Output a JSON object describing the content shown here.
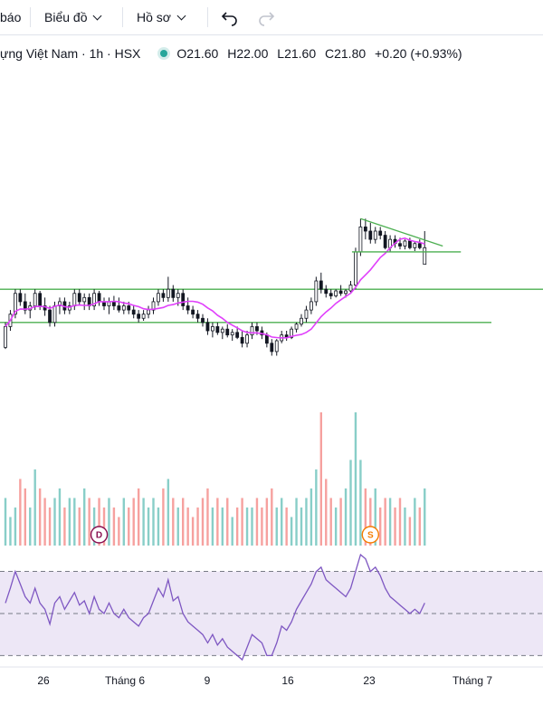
{
  "toolbar": {
    "cut_label": "báo",
    "chart_menu": "Biểu đồ",
    "profile_menu": "Hồ sơ"
  },
  "legend": {
    "symbol": "ựng Việt Nam · 1h · HSX",
    "open": "O21.60",
    "high": "H22.00",
    "low": "L21.60",
    "close": "C21.80",
    "change": "+0.20 (+0.93%)"
  },
  "colors": {
    "up": "#26a69a",
    "down": "#ef5350",
    "candle": "#131722",
    "ma": "#e040fb",
    "trendline": "#4caf50",
    "rsi": "#7e57c2",
    "rsi_band": "#ede7f6"
  },
  "events": [
    {
      "label": "D",
      "color": "#880e4f",
      "x_index": 19
    },
    {
      "label": "S",
      "color": "#f57c00",
      "x_index": 74
    }
  ],
  "chart_data": {
    "type": "candlestick",
    "x_ticks": [
      "26",
      "Tháng 6",
      "9",
      "16",
      "23",
      "Tháng 7"
    ],
    "price_range": [
      20.2,
      22.6
    ],
    "horizontal_levels": [
      21.3,
      20.9
    ],
    "rsi_levels": [
      70,
      50,
      30
    ],
    "rsi_range": [
      28,
      78
    ],
    "candles": [
      [
        20.6,
        20.9,
        20.58,
        20.85
      ],
      [
        20.85,
        21.05,
        20.8,
        21.0
      ],
      [
        21.0,
        21.3,
        20.95,
        21.25
      ],
      [
        21.25,
        21.3,
        21.1,
        21.15
      ],
      [
        21.15,
        21.25,
        21.0,
        21.05
      ],
      [
        21.05,
        21.15,
        20.95,
        21.1
      ],
      [
        21.1,
        21.3,
        21.05,
        21.25
      ],
      [
        21.25,
        21.28,
        21.05,
        21.1
      ],
      [
        21.1,
        21.2,
        20.98,
        21.05
      ],
      [
        21.05,
        21.1,
        20.85,
        20.9
      ],
      [
        20.9,
        21.15,
        20.85,
        21.1
      ],
      [
        21.1,
        21.2,
        21.0,
        21.15
      ],
      [
        21.15,
        21.2,
        21.0,
        21.05
      ],
      [
        21.05,
        21.15,
        21.0,
        21.1
      ],
      [
        21.1,
        21.3,
        21.05,
        21.25
      ],
      [
        21.25,
        21.3,
        21.1,
        21.15
      ],
      [
        21.15,
        21.25,
        21.05,
        21.2
      ],
      [
        21.2,
        21.25,
        21.05,
        21.1
      ],
      [
        21.1,
        21.3,
        21.05,
        21.25
      ],
      [
        21.25,
        21.28,
        21.1,
        21.15
      ],
      [
        21.15,
        21.2,
        21.05,
        21.1
      ],
      [
        21.1,
        21.2,
        21.0,
        21.15
      ],
      [
        21.15,
        21.22,
        21.05,
        21.1
      ],
      [
        21.1,
        21.2,
        21.02,
        21.05
      ],
      [
        21.05,
        21.15,
        21.0,
        21.1
      ],
      [
        21.1,
        21.15,
        21.0,
        21.05
      ],
      [
        21.05,
        21.1,
        20.95,
        21.0
      ],
      [
        21.0,
        21.05,
        20.9,
        20.95
      ],
      [
        20.95,
        21.05,
        20.92,
        21.0
      ],
      [
        21.0,
        21.1,
        20.95,
        21.05
      ],
      [
        21.05,
        21.2,
        21.0,
        21.15
      ],
      [
        21.15,
        21.3,
        21.1,
        21.25
      ],
      [
        21.25,
        21.3,
        21.15,
        21.2
      ],
      [
        21.2,
        21.45,
        21.15,
        21.3
      ],
      [
        21.3,
        21.35,
        21.15,
        21.2
      ],
      [
        21.2,
        21.3,
        21.1,
        21.25
      ],
      [
        21.25,
        21.3,
        21.05,
        21.1
      ],
      [
        21.1,
        21.2,
        21.0,
        21.05
      ],
      [
        21.05,
        21.1,
        20.95,
        21.0
      ],
      [
        21.0,
        21.05,
        20.9,
        20.95
      ],
      [
        20.95,
        21.0,
        20.85,
        20.9
      ],
      [
        20.9,
        20.95,
        20.75,
        20.8
      ],
      [
        20.8,
        20.9,
        20.72,
        20.85
      ],
      [
        20.85,
        20.9,
        20.75,
        20.78
      ],
      [
        20.78,
        20.85,
        20.7,
        20.82
      ],
      [
        20.82,
        20.88,
        20.72,
        20.75
      ],
      [
        20.75,
        20.82,
        20.68,
        20.78
      ],
      [
        20.78,
        20.85,
        20.7,
        20.72
      ],
      [
        20.72,
        20.8,
        20.6,
        20.65
      ],
      [
        20.65,
        20.8,
        20.6,
        20.75
      ],
      [
        20.75,
        20.9,
        20.7,
        20.85
      ],
      [
        20.85,
        20.9,
        20.75,
        20.8
      ],
      [
        20.8,
        20.85,
        20.7,
        20.75
      ],
      [
        20.75,
        20.78,
        20.6,
        20.65
      ],
      [
        20.65,
        20.7,
        20.5,
        20.55
      ],
      [
        20.55,
        20.7,
        20.5,
        20.68
      ],
      [
        20.68,
        20.8,
        20.65,
        20.75
      ],
      [
        20.75,
        20.8,
        20.68,
        20.72
      ],
      [
        20.72,
        20.85,
        20.7,
        20.82
      ],
      [
        20.82,
        20.9,
        20.78,
        20.88
      ],
      [
        20.88,
        21.0,
        20.85,
        20.95
      ],
      [
        20.95,
        21.1,
        20.9,
        21.05
      ],
      [
        21.05,
        21.2,
        21.0,
        21.15
      ],
      [
        21.15,
        21.45,
        21.1,
        21.4
      ],
      [
        21.4,
        21.5,
        21.25,
        21.3
      ],
      [
        21.3,
        21.35,
        21.2,
        21.25
      ],
      [
        21.25,
        21.3,
        21.18,
        21.22
      ],
      [
        21.22,
        21.3,
        21.2,
        21.28
      ],
      [
        21.28,
        21.35,
        21.22,
        21.25
      ],
      [
        21.25,
        21.3,
        21.2,
        21.28
      ],
      [
        21.28,
        21.4,
        21.25,
        21.35
      ],
      [
        21.35,
        21.8,
        21.3,
        21.75
      ],
      [
        21.75,
        22.15,
        21.7,
        22.05
      ],
      [
        22.05,
        22.15,
        21.9,
        22.0
      ],
      [
        22.0,
        22.1,
        21.85,
        21.9
      ],
      [
        21.9,
        22.05,
        21.85,
        22.0
      ],
      [
        22.0,
        22.05,
        21.9,
        21.95
      ],
      [
        21.95,
        22.0,
        21.78,
        21.8
      ],
      [
        21.8,
        21.95,
        21.75,
        21.9
      ],
      [
        21.9,
        21.95,
        21.8,
        21.85
      ],
      [
        21.85,
        21.92,
        21.78,
        21.82
      ],
      [
        21.82,
        21.9,
        21.78,
        21.88
      ],
      [
        21.88,
        21.92,
        21.78,
        21.8
      ],
      [
        21.8,
        21.88,
        21.76,
        21.85
      ],
      [
        21.85,
        21.9,
        21.78,
        21.8
      ],
      [
        21.6,
        22.0,
        21.6,
        21.8
      ]
    ],
    "volume": [
      5,
      3,
      4,
      7,
      6,
      4,
      8,
      6,
      5,
      4,
      5,
      6,
      4,
      5,
      5,
      4,
      6,
      5,
      4,
      5,
      4,
      5,
      4,
      3,
      5,
      4,
      5,
      6,
      5,
      4,
      5,
      4,
      6,
      7,
      5,
      4,
      5,
      4,
      3,
      4,
      5,
      6,
      4,
      5,
      4,
      5,
      3,
      4,
      5,
      4,
      4,
      5,
      4,
      5,
      6,
      4,
      5,
      4,
      3,
      5,
      4,
      5,
      6,
      8,
      14,
      7,
      5,
      4,
      5,
      6,
      9,
      14,
      9,
      6,
      5,
      6,
      4,
      5,
      5,
      4,
      5,
      4,
      3,
      5,
      4,
      6
    ],
    "rsi": [
      55,
      62,
      70,
      64,
      58,
      55,
      62,
      55,
      52,
      45,
      55,
      58,
      52,
      56,
      60,
      54,
      56,
      50,
      58,
      52,
      50,
      55,
      50,
      48,
      52,
      48,
      46,
      44,
      48,
      50,
      56,
      62,
      58,
      66,
      56,
      58,
      50,
      46,
      44,
      42,
      40,
      36,
      40,
      35,
      38,
      34,
      32,
      30,
      28,
      34,
      40,
      38,
      36,
      30,
      30,
      36,
      44,
      42,
      46,
      52,
      56,
      60,
      64,
      70,
      72,
      66,
      64,
      62,
      60,
      58,
      62,
      70,
      78,
      76,
      70,
      72,
      68,
      62,
      58,
      56,
      54,
      52,
      50,
      52,
      50,
      55
    ]
  }
}
